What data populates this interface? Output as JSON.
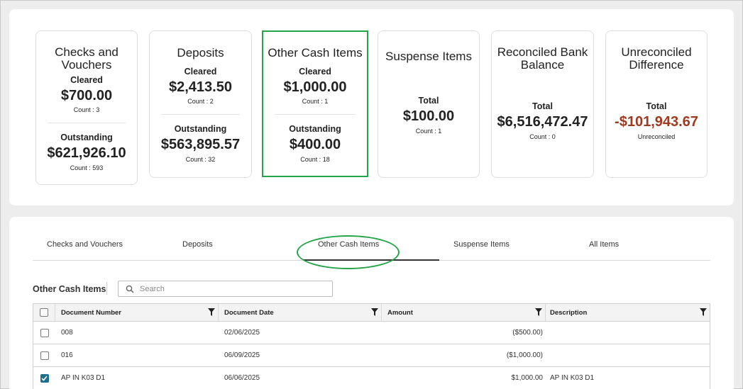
{
  "cards": {
    "checks": {
      "title": "Checks and Vouchers",
      "cleared_label": "Cleared",
      "cleared_amount": "$700.00",
      "cleared_count": "Count : 3",
      "outstanding_label": "Outstanding",
      "outstanding_amount": "$621,926.10",
      "outstanding_count": "Count : 593"
    },
    "deposits": {
      "title": "Deposits",
      "cleared_label": "Cleared",
      "cleared_amount": "$2,413.50",
      "cleared_count": "Count : 2",
      "outstanding_label": "Outstanding",
      "outstanding_amount": "$563,895.57",
      "outstanding_count": "Count : 32"
    },
    "other_cash": {
      "title": "Other Cash Items",
      "cleared_label": "Cleared",
      "cleared_amount": "$1,000.00",
      "cleared_count": "Count : 1",
      "outstanding_label": "Outstanding",
      "outstanding_amount": "$400.00",
      "outstanding_count": "Count : 18"
    },
    "suspense": {
      "title": "Suspense Items",
      "total_label": "Total",
      "total_amount": "$100.00",
      "total_count": "Count : 1"
    },
    "reconciled": {
      "title_line1": "Reconciled Bank",
      "title_line2": "Balance",
      "total_label": "Total",
      "total_amount": "$6,516,472.47",
      "total_count": "Count : 0"
    },
    "unreconciled": {
      "title_line1": "Unreconciled",
      "title_line2": "Difference",
      "total_label": "Total",
      "total_amount": "-$101,943.67",
      "total_sub": "Unreconciled"
    }
  },
  "tabs": [
    {
      "label": "Checks and Vouchers"
    },
    {
      "label": "Deposits"
    },
    {
      "label": "Other Cash Items"
    },
    {
      "label": "Suspense Items"
    },
    {
      "label": "All Items"
    }
  ],
  "section": {
    "title": "Other Cash Items",
    "search_placeholder": "Search"
  },
  "grid": {
    "columns": [
      "Document Number",
      "Document Date",
      "Amount",
      "Description"
    ],
    "rows": [
      {
        "doc": "008",
        "date": "02/06/2025",
        "amount": "($500.00)",
        "desc": "",
        "checked": false
      },
      {
        "doc": "016",
        "date": "06/09/2025",
        "amount": "($1,000.00)",
        "desc": "",
        "checked": false
      },
      {
        "doc": "AP IN K03 D1",
        "date": "06/06/2025",
        "amount": "$1,000.00",
        "desc": "AP IN K03 D1",
        "checked": true
      }
    ]
  },
  "colors": {
    "highlight": "#25a54a",
    "negative": "#9c3b22",
    "checkbox_checked": "#1f6f8b"
  }
}
